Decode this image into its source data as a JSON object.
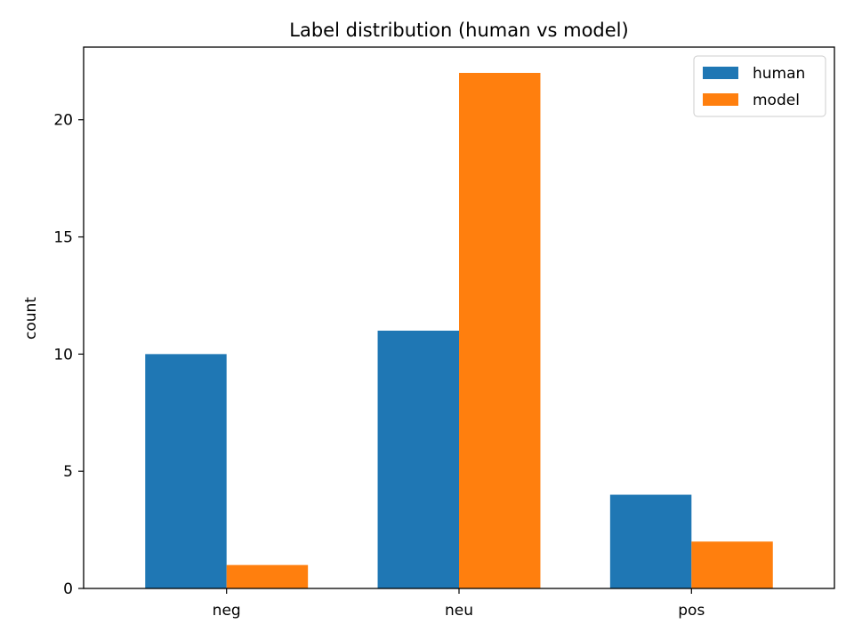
{
  "chart_data": {
    "type": "bar",
    "title": "Label distribution (human vs model)",
    "xlabel": "",
    "ylabel": "count",
    "categories": [
      "neg",
      "neu",
      "pos"
    ],
    "series": [
      {
        "name": "human",
        "values": [
          10,
          11,
          4
        ],
        "color": "#1f77b4"
      },
      {
        "name": "model",
        "values": [
          1,
          22,
          2
        ],
        "color": "#ff7f0e"
      }
    ],
    "ylim": [
      0,
      23.1
    ],
    "yticks": [
      0,
      5,
      10,
      15,
      20
    ],
    "grid": false,
    "legend_position": "top-right"
  }
}
